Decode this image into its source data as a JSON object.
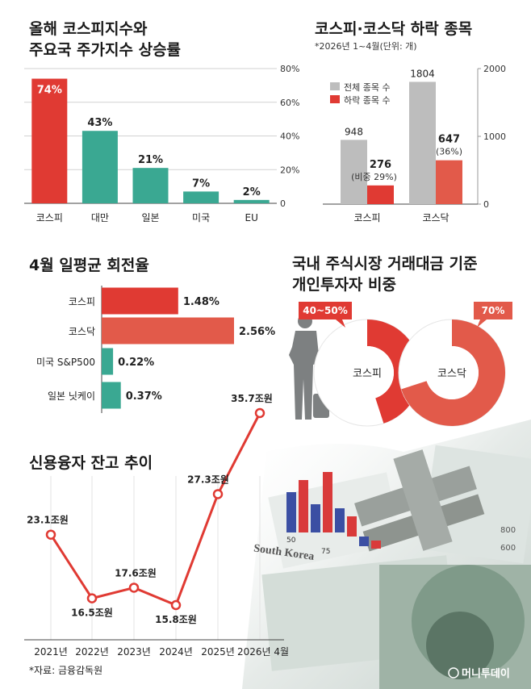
{
  "colors": {
    "red": "#e03a33",
    "teal": "#3aa892",
    "coral": "#e25a4a",
    "gray": "#bdbdbd",
    "dark": "#222222"
  },
  "chart_data": [
    {
      "type": "bar",
      "title_lines": [
        "올해 코스피지수와",
        "주요국 주가지수 상승률"
      ],
      "categories": [
        "코스피",
        "대만",
        "일본",
        "미국",
        "EU"
      ],
      "values": [
        74,
        43,
        21,
        7,
        2
      ],
      "value_labels": [
        "74%",
        "43%",
        "21%",
        "7%",
        "2%"
      ],
      "yticks": [
        "0",
        "20%",
        "40%",
        "60%",
        "80%"
      ],
      "ylim": [
        0,
        80
      ],
      "grid": true
    },
    {
      "type": "bar",
      "title": "코스피·코스닥 하락 종목",
      "subtitle": "*2026년 1~4월(단위: 개)",
      "categories": [
        "코스피",
        "코스닥"
      ],
      "series": [
        {
          "name": "전체 종목 수",
          "values": [
            948,
            1804
          ],
          "labels": [
            "948",
            "1804"
          ]
        },
        {
          "name": "하락 종목 수",
          "values": [
            276,
            647
          ],
          "labels": [
            "276",
            "647"
          ],
          "notes": [
            "(비중 29%)",
            "(36%)"
          ]
        }
      ],
      "yticks": [
        "0",
        "1000",
        "2000"
      ],
      "ylim": [
        0,
        2000
      ],
      "legend": "top-left"
    },
    {
      "type": "bar",
      "orientation": "horizontal",
      "title": "4월 일평균 회전율",
      "categories": [
        "코스피",
        "코스닥",
        "미국 S&P500",
        "일본 닛케이"
      ],
      "values": [
        1.48,
        2.56,
        0.22,
        0.37
      ],
      "value_labels": [
        "1.48%",
        "2.56%",
        "0.22%",
        "0.37%"
      ]
    },
    {
      "type": "pie",
      "title_lines": [
        "국내 주식시장 거래대금 기준",
        "개인투자자 비중"
      ],
      "items": [
        {
          "name": "코스피",
          "value": 45,
          "label": "40~50%"
        },
        {
          "name": "코스닥",
          "value": 70,
          "label": "70%"
        }
      ]
    },
    {
      "type": "line",
      "title": "신용융자 잔고 추이",
      "x": [
        "2021년",
        "2022년",
        "2023년",
        "2024년",
        "2025년",
        "2026년 4월"
      ],
      "values": [
        23.1,
        16.5,
        17.6,
        15.8,
        27.3,
        35.7
      ],
      "value_labels": [
        "23.1조원",
        "16.5조원",
        "17.6조원",
        "15.8조원",
        "27.3조원",
        "35.7조원"
      ]
    }
  ],
  "source": "*자료: 금융감독원",
  "watermark": "머니투데이",
  "illustration": {
    "banner_text": "South Korea",
    "axis_labels": [
      "50",
      "75"
    ],
    "note_labels": [
      "800",
      "600"
    ]
  }
}
